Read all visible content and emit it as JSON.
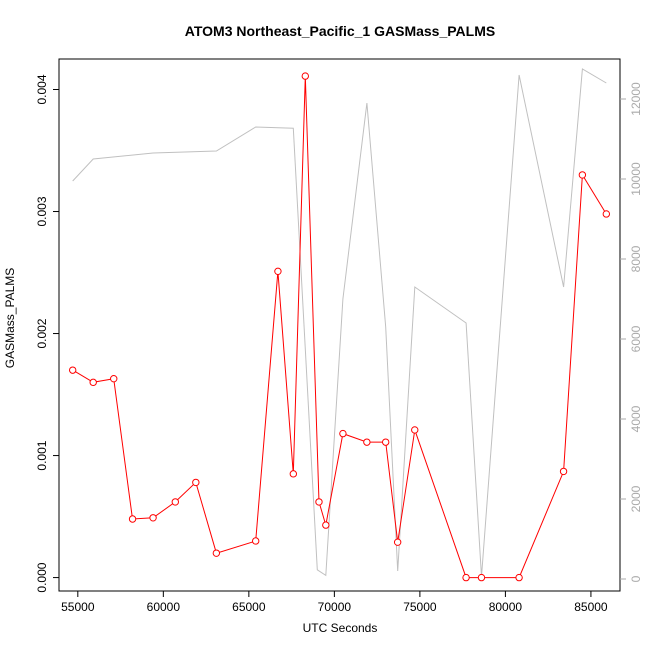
{
  "chart_data": {
    "type": "line",
    "title": "ATOM3 Northeast_Pacific_1 GASMass_PALMS",
    "xlabel": "UTC Seconds",
    "ylabel": "GASMass_PALMS",
    "xlim": [
      53900,
      86700
    ],
    "ylim": [
      -0.00011,
      0.00425
    ],
    "x_ticks": [
      55000,
      60000,
      65000,
      70000,
      75000,
      80000,
      85000
    ],
    "y_ticks": [
      0.0,
      0.001,
      0.002,
      0.003,
      0.004
    ],
    "y_tick_labels": [
      "0.000",
      "0.001",
      "0.002",
      "0.003",
      "0.004"
    ],
    "y2_lim": [
      -300,
      13000
    ],
    "y2_ticks": [
      0,
      2000,
      4000,
      6000,
      8000,
      10000,
      12000
    ],
    "y2_tick_labels": [
      "0",
      "2000",
      "4000",
      "6000",
      "8000",
      "10000",
      "12000"
    ],
    "grid": false,
    "series": [
      {
        "axis": "left",
        "color": "#ff0000",
        "markers": "open-circle",
        "x": [
          54700,
          55900,
          57100,
          58200,
          59400,
          60700,
          61900,
          63100,
          65400,
          66700,
          67600,
          68300,
          69100,
          69500,
          70500,
          71900,
          73000,
          73700,
          74700,
          77700,
          78600,
          80800,
          83400,
          84500,
          85900
        ],
        "y": [
          0.0017,
          0.0016,
          0.00163,
          0.00048,
          0.00049,
          0.00062,
          0.00078,
          0.0002,
          0.0003,
          0.00251,
          0.00085,
          0.00411,
          0.00062,
          0.00043,
          0.00118,
          0.00111,
          0.00111,
          0.00029,
          0.00121,
          0.0,
          0.0,
          0.0,
          0.00087,
          0.0033,
          0.00298
        ]
      },
      {
        "axis": "right",
        "color": "#c0c0c0",
        "markers": "none",
        "x": [
          54700,
          55900,
          59400,
          63100,
          65400,
          67600,
          69000,
          69500,
          70500,
          71900,
          73000,
          73700,
          74700,
          77700,
          78600,
          80800,
          83400,
          84500,
          85900
        ],
        "y": [
          9950,
          10500,
          10650,
          10700,
          11300,
          11270,
          230,
          90,
          7000,
          11900,
          6300,
          200,
          7300,
          6400,
          60,
          12600,
          7300,
          12750,
          12400
        ]
      }
    ]
  }
}
